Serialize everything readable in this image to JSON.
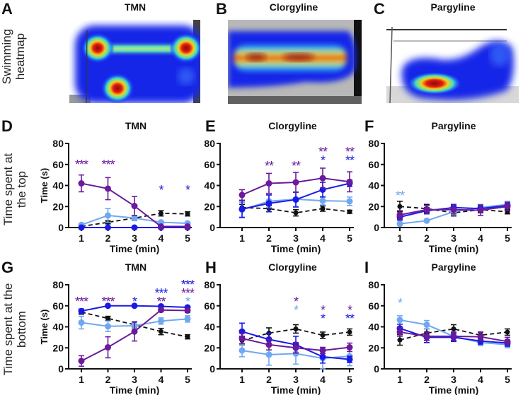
{
  "figure": {
    "row_labels": {
      "heatmap": [
        "Swimming",
        "heatmap"
      ],
      "top": [
        "Time spent at",
        "the top"
      ],
      "bottom": [
        "Time spent at the",
        "bottom"
      ]
    },
    "heatmaps": [
      {
        "panel": "A",
        "title": "TMN"
      },
      {
        "panel": "B",
        "title": "Clorgyline"
      },
      {
        "panel": "C",
        "title": "Pargyline"
      }
    ],
    "series_colors": {
      "control": "#111111",
      "dose1": "#6fa8f0",
      "dose2": "#1a1ae6",
      "dose3": "#6a1a9a"
    }
  },
  "chart_data": [
    {
      "panel": "D",
      "title": "TMN",
      "type": "line",
      "xlabel": "Time (min)",
      "ylabel": "Time (s)",
      "ylim": [
        0,
        80
      ],
      "x": [
        1,
        2,
        3,
        4,
        5
      ],
      "yticks": [
        0,
        20,
        40,
        60,
        80
      ],
      "series": [
        {
          "name": "control",
          "values": [
            1,
            5,
            9,
            13.5,
            13
          ],
          "err": [
            1,
            1.5,
            2,
            2.5,
            2
          ],
          "dashed": true
        },
        {
          "name": "dose1",
          "values": [
            2.5,
            11.5,
            9,
            5,
            4
          ],
          "err": [
            1,
            6.5,
            2.5,
            1,
            1
          ]
        },
        {
          "name": "dose2",
          "values": [
            0,
            0,
            0,
            0,
            0
          ],
          "err": [
            0,
            0,
            0,
            0,
            0
          ]
        },
        {
          "name": "dose3",
          "values": [
            42,
            37,
            20.5,
            1,
            1
          ],
          "err": [
            8,
            10.5,
            9,
            0.5,
            0.5
          ]
        }
      ],
      "annotations": [
        {
          "x": 1,
          "text": "***",
          "color": "dose3",
          "row": 0
        },
        {
          "x": 2,
          "text": "***",
          "color": "dose3",
          "row": 0
        },
        {
          "x": 4,
          "text": "*",
          "color": "dose2",
          "row": 1
        },
        {
          "x": 5,
          "text": "*",
          "color": "dose2",
          "row": 1
        }
      ]
    },
    {
      "panel": "E",
      "title": "Clorgyline",
      "type": "line",
      "xlabel": "Time (min)",
      "ylabel": "",
      "ylim": [
        0,
        80
      ],
      "x": [
        1,
        2,
        3,
        4,
        5
      ],
      "yticks": [
        0,
        20,
        40,
        60,
        80
      ],
      "series": [
        {
          "name": "control",
          "values": [
            19,
            18,
            14,
            18,
            15
          ],
          "err": [
            3,
            3,
            3,
            2.5,
            1.5
          ],
          "dashed": true
        },
        {
          "name": "dose1",
          "values": [
            17,
            25,
            27,
            25.5,
            25
          ],
          "err": [
            7,
            6,
            7,
            4,
            4
          ]
        },
        {
          "name": "dose2",
          "values": [
            17.5,
            23,
            26.5,
            36,
            42
          ],
          "err": [
            8,
            8,
            7,
            7,
            3
          ]
        },
        {
          "name": "dose3",
          "values": [
            31,
            42,
            43,
            47,
            43.5
          ],
          "err": [
            5,
            9.5,
            9.5,
            9.5,
            9.5
          ]
        }
      ],
      "annotations": [
        {
          "x": 2,
          "text": "**",
          "color": "dose3",
          "row": 0
        },
        {
          "x": 3,
          "text": "**",
          "color": "dose3",
          "row": 0
        },
        {
          "x": 4,
          "text": "**",
          "color": "dose3",
          "row": 0
        },
        {
          "x": 4,
          "text": "*",
          "color": "dose2",
          "row": 1
        },
        {
          "x": 5,
          "text": "**",
          "color": "dose3",
          "row": 0
        },
        {
          "x": 5,
          "text": "**",
          "color": "dose2",
          "row": 1
        }
      ]
    },
    {
      "panel": "F",
      "title": "Pargyline",
      "type": "line",
      "xlabel": "Time (min)",
      "ylabel": "",
      "ylim": [
        0,
        80
      ],
      "x": [
        1,
        2,
        3,
        4,
        5
      ],
      "yticks": [
        0,
        20,
        40,
        60,
        80
      ],
      "series": [
        {
          "name": "control",
          "values": [
            20,
            18,
            14,
            17,
            15
          ],
          "err": [
            5,
            4,
            3,
            3,
            2
          ],
          "dashed": true
        },
        {
          "name": "dose1",
          "values": [
            3.5,
            6.5,
            15,
            19,
            22
          ],
          "err": [
            1,
            1,
            3,
            3,
            3
          ]
        },
        {
          "name": "dose2",
          "values": [
            10,
            16,
            19,
            18,
            21
          ],
          "err": [
            3,
            3,
            3,
            3,
            3
          ]
        },
        {
          "name": "dose3",
          "values": [
            12,
            17,
            17,
            16.5,
            20
          ],
          "err": [
            4,
            4,
            4,
            5,
            4
          ]
        }
      ],
      "annotations": [
        {
          "x": 1,
          "text": "**",
          "color": "dose1",
          "row": 2
        }
      ]
    },
    {
      "panel": "G",
      "title": "TMN",
      "type": "line",
      "xlabel": "Time (min)",
      "ylabel": "Time (s)",
      "ylim": [
        0,
        80
      ],
      "x": [
        1,
        2,
        3,
        4,
        5
      ],
      "yticks": [
        0,
        20,
        40,
        60,
        80
      ],
      "series": [
        {
          "name": "control",
          "values": [
            54,
            48,
            42,
            35.5,
            30.5
          ],
          "err": [
            2,
            2,
            3,
            3,
            2
          ],
          "dashed": true
        },
        {
          "name": "dose1",
          "values": [
            44,
            40.5,
            41,
            45.5,
            47.5
          ],
          "err": [
            6,
            5,
            4,
            3,
            3
          ]
        },
        {
          "name": "dose2",
          "values": [
            55,
            60,
            60,
            59.5,
            58.5
          ],
          "err": [
            2,
            0.5,
            0.5,
            0.5,
            1
          ]
        },
        {
          "name": "dose3",
          "values": [
            7.5,
            20.5,
            35.5,
            56,
            55.5
          ],
          "err": [
            5,
            10,
            9,
            1.5,
            2
          ]
        }
      ],
      "annotations": [
        {
          "x": 1,
          "text": "***",
          "color": "dose3",
          "row": 0
        },
        {
          "x": 2,
          "text": "***",
          "color": "dose3",
          "row": 0
        },
        {
          "x": 3,
          "text": "*",
          "color": "dose2",
          "row": 0
        },
        {
          "x": 4,
          "text": "***",
          "color": "dose2",
          "row": -1
        },
        {
          "x": 4,
          "text": "**",
          "color": "dose3",
          "row": 0
        },
        {
          "x": 5,
          "text": "***",
          "color": "dose2",
          "row": -2
        },
        {
          "x": 5,
          "text": "***",
          "color": "dose3",
          "row": -1
        },
        {
          "x": 5,
          "text": "*",
          "color": "dose1",
          "row": 0
        }
      ]
    },
    {
      "panel": "H",
      "title": "Clorgyline",
      "type": "line",
      "xlabel": "Time (min)",
      "ylabel": "",
      "ylim": [
        0,
        80
      ],
      "x": [
        1,
        2,
        3,
        4,
        5
      ],
      "yticks": [
        0,
        20,
        40,
        60,
        80
      ],
      "series": [
        {
          "name": "control",
          "values": [
            27,
            34,
            38,
            32,
            35
          ],
          "err": [
            4,
            5,
            4,
            3,
            3
          ],
          "dashed": true
        },
        {
          "name": "dose1",
          "values": [
            17.5,
            13.5,
            14.5,
            10,
            12
          ],
          "err": [
            6,
            10,
            10,
            10,
            9
          ]
        },
        {
          "name": "dose2",
          "values": [
            35.5,
            28,
            23,
            11.5,
            9
          ],
          "err": [
            8,
            6,
            8,
            6,
            3
          ]
        },
        {
          "name": "dose3",
          "values": [
            29,
            23,
            20,
            17.5,
            20.5
          ],
          "err": [
            5,
            5,
            5,
            3,
            4
          ]
        }
      ],
      "annotations": [
        {
          "x": 3,
          "text": "*",
          "color": "dose3",
          "row": 0
        },
        {
          "x": 3,
          "text": "*",
          "color": "dose1",
          "row": 1
        },
        {
          "x": 4,
          "text": "*",
          "color": "dose3",
          "row": 1
        },
        {
          "x": 4,
          "text": "*",
          "color": "dose2",
          "row": 2
        },
        {
          "x": 5,
          "text": "*",
          "color": "dose3",
          "row": 1
        },
        {
          "x": 5,
          "text": "**",
          "color": "dose2",
          "row": 2
        }
      ]
    },
    {
      "panel": "I",
      "title": "Pargyline",
      "type": "line",
      "xlabel": "Time (min)",
      "ylabel": "",
      "ylim": [
        0,
        80
      ],
      "x": [
        1,
        2,
        3,
        4,
        5
      ],
      "yticks": [
        0,
        20,
        40,
        60,
        80
      ],
      "series": [
        {
          "name": "control",
          "values": [
            27.5,
            34,
            38,
            32,
            35
          ],
          "err": [
            5,
            4,
            4,
            3,
            3
          ],
          "dashed": true
        },
        {
          "name": "dose1",
          "values": [
            46.5,
            42,
            31,
            25,
            23
          ],
          "err": [
            4,
            4,
            4,
            3,
            3
          ]
        },
        {
          "name": "dose2",
          "values": [
            38.5,
            30,
            30,
            26.5,
            24.5
          ],
          "err": [
            4,
            5,
            4,
            3,
            3
          ]
        },
        {
          "name": "dose3",
          "values": [
            35,
            31,
            31,
            30.5,
            26
          ],
          "err": [
            4,
            4,
            4,
            4,
            4
          ]
        }
      ],
      "annotations": [
        {
          "x": 1,
          "text": "*",
          "color": "dose1",
          "row": 0
        }
      ]
    }
  ]
}
